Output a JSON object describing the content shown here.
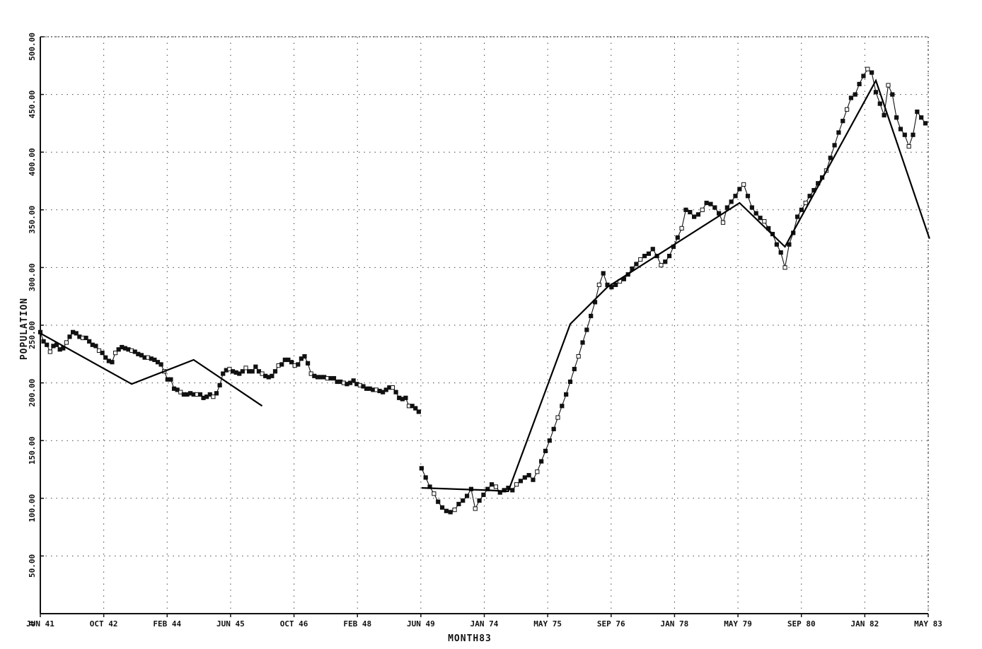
{
  "chart_data": {
    "type": "line",
    "xlabel": "MONTH83",
    "ylabel": "POPULATION",
    "ylim": [
      0,
      500
    ],
    "yticks": [
      0,
      50,
      100,
      150,
      200,
      250,
      300,
      350,
      400,
      450,
      500
    ],
    "ytick_labels": [
      "0",
      "50.00",
      "100.00",
      "150.00",
      "200.00",
      "250.00",
      "300.00",
      "350.00",
      "400.00",
      "450.00",
      "500.00"
    ],
    "xtick_labels": [
      "JUN 41",
      "OCT 42",
      "FEB 44",
      "JUN 45",
      "OCT 46",
      "FEB 48",
      "JUN 49",
      "JAN 74",
      "MAY 75",
      "SEP 76",
      "JAN 78",
      "MAY 79",
      "SEP 80",
      "JAN 82",
      "MAY 83"
    ],
    "grid": true,
    "break_after_tick": 6,
    "series": [
      {
        "segment": "1941-1949",
        "values": [
          244,
          236,
          233,
          227,
          232,
          233,
          229,
          230,
          235,
          240,
          244,
          243,
          240,
          239,
          239,
          236,
          233,
          232,
          228,
          226,
          222,
          219,
          218,
          226,
          229,
          231,
          230,
          229,
          228,
          227,
          225,
          224,
          222,
          222,
          221,
          220,
          218,
          216,
          210,
          203,
          203,
          195,
          194,
          192,
          190,
          190,
          191,
          190,
          190,
          190,
          187,
          188,
          190,
          188,
          191,
          198,
          208,
          211,
          212,
          210,
          209,
          208,
          210,
          213,
          210,
          210,
          214,
          210,
          208,
          206,
          205,
          206,
          210,
          215,
          216,
          220,
          220,
          218,
          215,
          216,
          221,
          223,
          217,
          208,
          206,
          205,
          205,
          205,
          204,
          204,
          204,
          201,
          201,
          200,
          199,
          200,
          202,
          199,
          198,
          197,
          195,
          195,
          194,
          194,
          193,
          192,
          194,
          196,
          196,
          192,
          187,
          186,
          187,
          180,
          180,
          178,
          175
        ]
      },
      {
        "segment": "1941-1949 trend",
        "values": [
          [
            0,
            243
          ],
          [
            28,
            199
          ],
          [
            47,
            220
          ],
          [
            68,
            180
          ]
        ]
      },
      {
        "segment": "1974-1983",
        "values": [
          126,
          118,
          110,
          104,
          97,
          92,
          89,
          88,
          90,
          95,
          98,
          102,
          108,
          91,
          98,
          103,
          108,
          112,
          110,
          105,
          107,
          109,
          107,
          112,
          115,
          118,
          120,
          116,
          123,
          132,
          141,
          150,
          160,
          170,
          180,
          190,
          201,
          212,
          223,
          235,
          246,
          258,
          270,
          285,
          295,
          285,
          283,
          285,
          288,
          290,
          294,
          299,
          303,
          307,
          310,
          312,
          316,
          310,
          302,
          305,
          310,
          318,
          326,
          334,
          350,
          348,
          344,
          346,
          350,
          356,
          355,
          352,
          347,
          339,
          352,
          357,
          362,
          368,
          372,
          362,
          352,
          347,
          343,
          340,
          334,
          329,
          320,
          313,
          300,
          320,
          330,
          344,
          350,
          356,
          362,
          367,
          373,
          378,
          384,
          395,
          406,
          417,
          427,
          437,
          447,
          450,
          459,
          466,
          472,
          469,
          452,
          442,
          432,
          458,
          450,
          430,
          420,
          415,
          405,
          415,
          435,
          430,
          425
        ]
      },
      {
        "segment": "1974-1983 trend",
        "values": [
          [
            0,
            109
          ],
          [
            16,
            107
          ],
          [
            21,
            106
          ],
          [
            36,
            251
          ],
          [
            45,
            283
          ],
          [
            77,
            356
          ],
          [
            88,
            318
          ],
          [
            110,
            462
          ],
          [
            123,
            325
          ]
        ]
      }
    ]
  }
}
